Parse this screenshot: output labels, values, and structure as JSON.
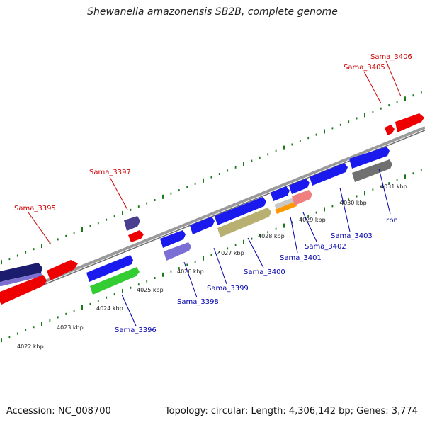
{
  "title": "Shewanella amazonensis SB2B, complete genome",
  "footer": {
    "accession": "Accession: NC_008700",
    "summary": "Topology: circular; Length: 4,306,142 bp; Genes: 3,774"
  },
  "colors": {
    "forward_label": "#cc0000",
    "reverse_label": "#0000aa",
    "backbone": "#8c8c8c",
    "ticks": "#1a7a1a"
  },
  "kbp_labels": [
    "4022 kbp",
    "4023 kbp",
    "4024 kbp",
    "4025 kbp",
    "4026 kbp",
    "4027 kbp",
    "4028 kbp",
    "4029 kbp",
    "4030 kbp",
    "4031 kbp"
  ],
  "forward_gene_labels": [
    "Sama_3395",
    "Sama_3397",
    "Sama_3405",
    "Sama_3406"
  ],
  "reverse_gene_labels": [
    "Sama_3396",
    "Sama_3398",
    "Sama_3399",
    "Sama_3400",
    "Sama_3401",
    "Sama_3402",
    "Sama_3403",
    "rbn"
  ]
}
